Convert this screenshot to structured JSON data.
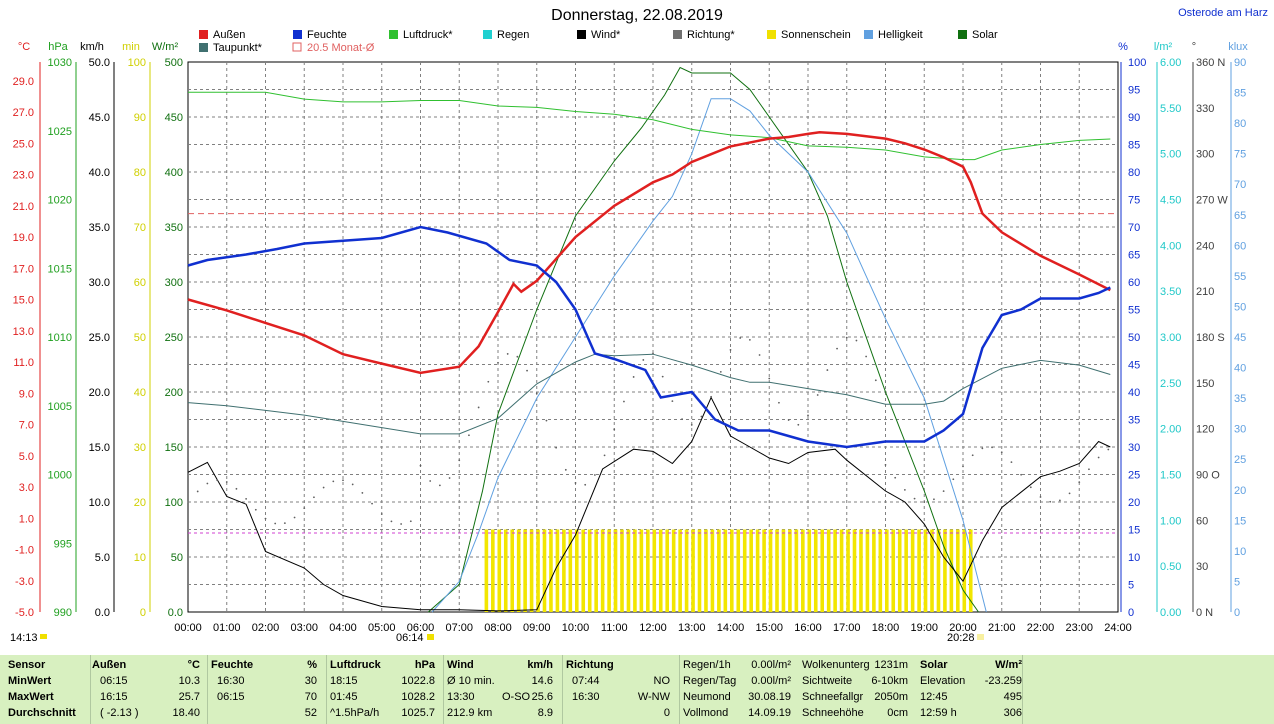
{
  "title": "Donnerstag, 22.08.2019",
  "location": "Osterode am Harz",
  "legend": [
    {
      "label": "Außen",
      "color": "#e02020"
    },
    {
      "label": "Feuchte",
      "color": "#1030d0"
    },
    {
      "label": "Luftdruck*",
      "color": "#30c030"
    },
    {
      "label": "Regen",
      "color": "#20d0d0"
    },
    {
      "label": "Wind*",
      "color": "#000000"
    },
    {
      "label": "Richtung*",
      "color": "#707070"
    },
    {
      "label": "Sonnenschein",
      "color": "#f0e000"
    },
    {
      "label": "Helligkeit",
      "color": "#60a0e0"
    },
    {
      "label": "Solar",
      "color": "#107010"
    },
    {
      "label": "Taupunkt*",
      "color": "#407070"
    },
    {
      "label": "20.5 Monat-Ø",
      "color": "#e06060"
    }
  ],
  "axes": {
    "temp": {
      "unit": "°C",
      "color": "#e02020",
      "ticks": [
        "29.0",
        "27.0",
        "25.0",
        "23.0",
        "21.0",
        "19.0",
        "17.0",
        "15.0",
        "13.0",
        "11.0",
        "9.0",
        "7.0",
        "5.0",
        "3.0",
        "1.0",
        "-1.0",
        "-3.0",
        "-5.0"
      ]
    },
    "pressure": {
      "unit": "hPa",
      "color": "#20a020",
      "ticks": [
        "1030",
        "1025",
        "1020",
        "1015",
        "1010",
        "1005",
        "1000",
        "995",
        "990"
      ]
    },
    "wind": {
      "unit": "km/h",
      "color": "#000000",
      "ticks": [
        "50.0",
        "45.0",
        "40.0",
        "35.0",
        "30.0",
        "25.0",
        "20.0",
        "15.0",
        "10.0",
        "5.0",
        "0.0"
      ]
    },
    "sunmin": {
      "unit": "min",
      "color": "#d0d000",
      "ticks": [
        "100",
        "90",
        "80",
        "70",
        "60",
        "50",
        "40",
        "30",
        "20",
        "10",
        "0"
      ]
    },
    "solar": {
      "unit": "W/m²",
      "color": "#107010",
      "ticks": [
        "500",
        "450",
        "400",
        "350",
        "300",
        "250",
        "200",
        "150",
        "100",
        "50",
        "0.0"
      ]
    },
    "humidity": {
      "unit": "%",
      "color": "#1030d0",
      "ticks": [
        "100",
        "95",
        "90",
        "85",
        "80",
        "75",
        "70",
        "65",
        "60",
        "55",
        "50",
        "45",
        "40",
        "35",
        "30",
        "25",
        "20",
        "15",
        "10",
        "5",
        "0"
      ]
    },
    "rain": {
      "unit": "l/m²",
      "color": "#20c8c8",
      "ticks": [
        "6.00",
        "5.50",
        "5.00",
        "4.50",
        "4.00",
        "3.50",
        "3.00",
        "2.50",
        "2.00",
        "1.50",
        "1.00",
        "0.50",
        "0.00"
      ]
    },
    "direction": {
      "unit": "°",
      "color": "#404040",
      "ticks": [
        "360 N",
        "330",
        "300",
        "270 W",
        "240",
        "210",
        "180 S",
        "150",
        "120",
        "90 O",
        "60",
        "30",
        "0 N"
      ]
    },
    "lux": {
      "unit": "klux",
      "color": "#60a0e0",
      "ticks": [
        "90",
        "85",
        "80",
        "75",
        "70",
        "65",
        "60",
        "55",
        "50",
        "45",
        "40",
        "35",
        "30",
        "25",
        "20",
        "15",
        "10",
        "5",
        "0"
      ]
    },
    "time": [
      "00:00",
      "01:00",
      "02:00",
      "03:00",
      "04:00",
      "05:00",
      "06:00",
      "07:00",
      "08:00",
      "09:00",
      "10:00",
      "11:00",
      "12:00",
      "13:00",
      "14:00",
      "15:00",
      "16:00",
      "17:00",
      "18:00",
      "19:00",
      "20:00",
      "21:00",
      "22:00",
      "23:00",
      "24:00"
    ]
  },
  "markers": {
    "now": "14:13",
    "sunrise": "06:14",
    "sunset": "20:28"
  },
  "stats": {
    "sensor": {
      "h": "Sensor",
      "rows": [
        "MinWert",
        "MaxWert",
        "Durchschnitt"
      ]
    },
    "aussen": {
      "h": "Außen",
      "u": "°C",
      "t": [
        "06:15",
        "16:15",
        "( -2.13 )"
      ],
      "v": [
        "10.3",
        "25.7",
        "18.40"
      ]
    },
    "feuchte": {
      "h": "Feuchte",
      "u": "%",
      "t": [
        "16:30",
        "06:15",
        ""
      ],
      "v": [
        "30",
        "70",
        "52"
      ]
    },
    "luftdruck": {
      "h": "Luftdruck",
      "u": "hPa",
      "t": [
        "18:15",
        "01:45",
        "^1.5hPa/h"
      ],
      "v": [
        "1022.8",
        "1028.2",
        "1025.7"
      ]
    },
    "wind": {
      "h": "Wind",
      "u": "km/h",
      "t": [
        "Ø 10 min.",
        "13:30",
        "212.9 km"
      ],
      "m": [
        "",
        "O-SO",
        ""
      ],
      "v": [
        "14.6",
        "25.6",
        "8.9"
      ]
    },
    "richtung": {
      "h": "Richtung",
      "t": [
        "07:44",
        "16:30",
        ""
      ],
      "v": [
        "NO",
        "W-NW",
        "0"
      ]
    },
    "regen": {
      "l": [
        "Regen/1h",
        "Regen/Tag",
        "Neumond",
        "Vollmond"
      ],
      "v": [
        "0.00l/m²",
        "0.00l/m²",
        "30.08.19",
        "14.09.19"
      ]
    },
    "wolken": {
      "l": [
        "Wolkenunterg",
        "Sichtweite",
        "Schneefallgr",
        "Schneehöhe"
      ],
      "v": [
        "1231m",
        "6-10km",
        "2050m",
        "0cm"
      ]
    },
    "solar": {
      "h": "Solar",
      "u": "W/m²",
      "l": [
        "Elevation",
        "12:45",
        "12:59 h"
      ],
      "v": [
        "-23.259",
        "495",
        "306"
      ]
    }
  },
  "chart_data": {
    "type": "line",
    "title": "Donnerstag, 22.08.2019",
    "x_range": [
      0,
      24
    ],
    "series": [
      {
        "name": "Außen",
        "unit": "°C",
        "points": [
          [
            0,
            15.0
          ],
          [
            1,
            14.3
          ],
          [
            2,
            13.5
          ],
          [
            3,
            12.7
          ],
          [
            4,
            11.5
          ],
          [
            5,
            10.9
          ],
          [
            6,
            10.3
          ],
          [
            7,
            10.7
          ],
          [
            7.5,
            12.0
          ],
          [
            8,
            14.2
          ],
          [
            8.4,
            16.0
          ],
          [
            8.6,
            15.5
          ],
          [
            9,
            16.2
          ],
          [
            10,
            19.0
          ],
          [
            11,
            21.0
          ],
          [
            12,
            22.5
          ],
          [
            12.5,
            23.0
          ],
          [
            13,
            23.8
          ],
          [
            13.5,
            24.3
          ],
          [
            14,
            24.8
          ],
          [
            15,
            25.3
          ],
          [
            15.5,
            25.4
          ],
          [
            16,
            25.6
          ],
          [
            16.3,
            25.7
          ],
          [
            17,
            25.6
          ],
          [
            18,
            25.3
          ],
          [
            18.5,
            25.0
          ],
          [
            19,
            24.6
          ],
          [
            19.5,
            24.1
          ],
          [
            20,
            23.5
          ],
          [
            20.2,
            22.5
          ],
          [
            20.5,
            20.5
          ],
          [
            21,
            19.3
          ],
          [
            22,
            17.8
          ],
          [
            23,
            16.6
          ],
          [
            23.8,
            15.6
          ]
        ]
      },
      {
        "name": "Feuchte",
        "unit": "%",
        "points": [
          [
            0,
            63
          ],
          [
            0.5,
            64
          ],
          [
            1.5,
            65
          ],
          [
            2.3,
            66
          ],
          [
            3,
            67
          ],
          [
            5,
            68
          ],
          [
            6,
            70
          ],
          [
            6.7,
            69
          ],
          [
            7.7,
            67
          ],
          [
            8.3,
            64
          ],
          [
            9,
            63
          ],
          [
            9.5,
            60
          ],
          [
            10,
            55
          ],
          [
            10.5,
            47
          ],
          [
            11,
            46
          ],
          [
            11.8,
            44
          ],
          [
            12.2,
            39
          ],
          [
            13,
            40
          ],
          [
            13.6,
            35
          ],
          [
            14.2,
            33
          ],
          [
            15,
            33
          ],
          [
            15.5,
            32
          ],
          [
            16,
            31
          ],
          [
            17,
            30
          ],
          [
            18,
            31
          ],
          [
            19,
            31
          ],
          [
            19.5,
            33
          ],
          [
            20,
            36
          ],
          [
            20.5,
            48
          ],
          [
            21,
            54
          ],
          [
            21.5,
            55
          ],
          [
            22,
            57
          ],
          [
            23,
            57
          ],
          [
            23.5,
            58
          ],
          [
            23.8,
            59
          ]
        ]
      },
      {
        "name": "Luftdruck*",
        "unit": "hPa",
        "points": [
          [
            0,
            1027.8
          ],
          [
            2,
            1027.8
          ],
          [
            3,
            1027.3
          ],
          [
            4,
            1027.1
          ],
          [
            5,
            1027.1
          ],
          [
            6,
            1027.2
          ],
          [
            7,
            1027.2
          ],
          [
            8,
            1026.8
          ],
          [
            9,
            1026.7
          ],
          [
            10,
            1026.4
          ],
          [
            11,
            1026.2
          ],
          [
            12,
            1025.8
          ],
          [
            13,
            1025.1
          ],
          [
            14,
            1024.7
          ],
          [
            15,
            1024.5
          ],
          [
            16,
            1023.9
          ],
          [
            17,
            1023.8
          ],
          [
            18,
            1023.6
          ],
          [
            19,
            1023.1
          ],
          [
            20,
            1022.9
          ],
          [
            20.3,
            1022.9
          ],
          [
            21,
            1023.6
          ],
          [
            22,
            1024.0
          ],
          [
            23,
            1024.3
          ],
          [
            23.8,
            1024.4
          ]
        ]
      },
      {
        "name": "Taupunkt*",
        "unit": "°C",
        "points": [
          [
            0,
            8.4
          ],
          [
            1,
            8.2
          ],
          [
            2,
            7.9
          ],
          [
            3,
            7.6
          ],
          [
            4,
            7.2
          ],
          [
            5,
            6.8
          ],
          [
            6,
            6.4
          ],
          [
            7,
            6.4
          ],
          [
            8,
            7.4
          ],
          [
            9,
            9.6
          ],
          [
            10,
            11.0
          ],
          [
            10.5,
            11.5
          ],
          [
            11,
            11.4
          ],
          [
            12,
            11.5
          ],
          [
            13,
            10.8
          ],
          [
            14,
            10.0
          ],
          [
            14.5,
            9.7
          ],
          [
            15,
            9.7
          ],
          [
            16,
            9.3
          ],
          [
            17,
            8.9
          ],
          [
            18,
            8.3
          ],
          [
            19,
            8.3
          ],
          [
            19.5,
            8.5
          ],
          [
            20,
            9.3
          ],
          [
            21,
            10.6
          ],
          [
            22,
            11.1
          ],
          [
            23,
            10.8
          ],
          [
            23.8,
            10.2
          ]
        ]
      },
      {
        "name": "Wind*",
        "unit": "km/h",
        "points": [
          [
            0,
            12.7
          ],
          [
            0.5,
            13.6
          ],
          [
            1,
            10.5
          ],
          [
            1.5,
            9.8
          ],
          [
            2,
            5.5
          ],
          [
            3,
            4.0
          ],
          [
            3.5,
            2.5
          ],
          [
            4,
            1.5
          ],
          [
            5,
            0.5
          ],
          [
            6,
            0.2
          ],
          [
            7,
            0.2
          ],
          [
            8,
            0.1
          ],
          [
            9,
            0.2
          ],
          [
            9.5,
            4.0
          ],
          [
            10,
            7.0
          ],
          [
            10.7,
            13.0
          ],
          [
            11.5,
            14.8
          ],
          [
            12,
            14.6
          ],
          [
            12.5,
            13.5
          ],
          [
            13,
            15.5
          ],
          [
            13.5,
            19.5
          ],
          [
            14,
            16.0
          ],
          [
            14.5,
            15.0
          ],
          [
            15,
            14.0
          ],
          [
            15.5,
            13.5
          ],
          [
            16,
            14.5
          ],
          [
            16.7,
            14.8
          ],
          [
            17,
            13.8
          ],
          [
            18,
            11.0
          ],
          [
            18.5,
            10.0
          ],
          [
            19,
            8.0
          ],
          [
            19.5,
            5.0
          ],
          [
            20,
            2.8
          ],
          [
            20.5,
            6.5
          ],
          [
            21,
            9.5
          ],
          [
            22,
            12.3
          ],
          [
            22.5,
            12.8
          ],
          [
            23,
            13.5
          ],
          [
            23.5,
            15.5
          ],
          [
            23.8,
            15.0
          ]
        ]
      },
      {
        "name": "Solar",
        "unit": "W/m²",
        "points": [
          [
            6.2,
            0
          ],
          [
            7,
            25
          ],
          [
            7.6,
            110
          ],
          [
            8,
            180
          ],
          [
            9,
            275
          ],
          [
            10,
            360
          ],
          [
            11,
            410
          ],
          [
            11.7,
            440
          ],
          [
            12.3,
            470
          ],
          [
            12.7,
            495
          ],
          [
            13,
            490
          ],
          [
            13.5,
            490
          ],
          [
            14,
            490
          ],
          [
            14.5,
            475
          ],
          [
            15,
            450
          ],
          [
            16,
            400
          ],
          [
            16.5,
            360
          ],
          [
            17,
            300
          ],
          [
            18,
            200
          ],
          [
            19,
            110
          ],
          [
            19.5,
            60
          ],
          [
            20,
            20
          ],
          [
            20.4,
            0
          ]
        ]
      },
      {
        "name": "Helligkeit",
        "unit": "klux",
        "points": [
          [
            6.3,
            0
          ],
          [
            7,
            5
          ],
          [
            7.5,
            13
          ],
          [
            8,
            22
          ],
          [
            9,
            35
          ],
          [
            10,
            45
          ],
          [
            11,
            55
          ],
          [
            12,
            64
          ],
          [
            12.5,
            68
          ],
          [
            13,
            75
          ],
          [
            13.5,
            84
          ],
          [
            14,
            84
          ],
          [
            14.5,
            82
          ],
          [
            15,
            78
          ],
          [
            16,
            72
          ],
          [
            17,
            62
          ],
          [
            17.5,
            55
          ],
          [
            18,
            48
          ],
          [
            19,
            35
          ],
          [
            19.5,
            25
          ],
          [
            20,
            15
          ],
          [
            20.6,
            0
          ]
        ]
      }
    ],
    "sunshine": {
      "unit": "min",
      "value": 15,
      "from": 7.7,
      "to": 20.25
    },
    "monthly_mean": {
      "label": "20.5 Monat-Ø",
      "unit": "°C",
      "value": 20.5
    }
  }
}
